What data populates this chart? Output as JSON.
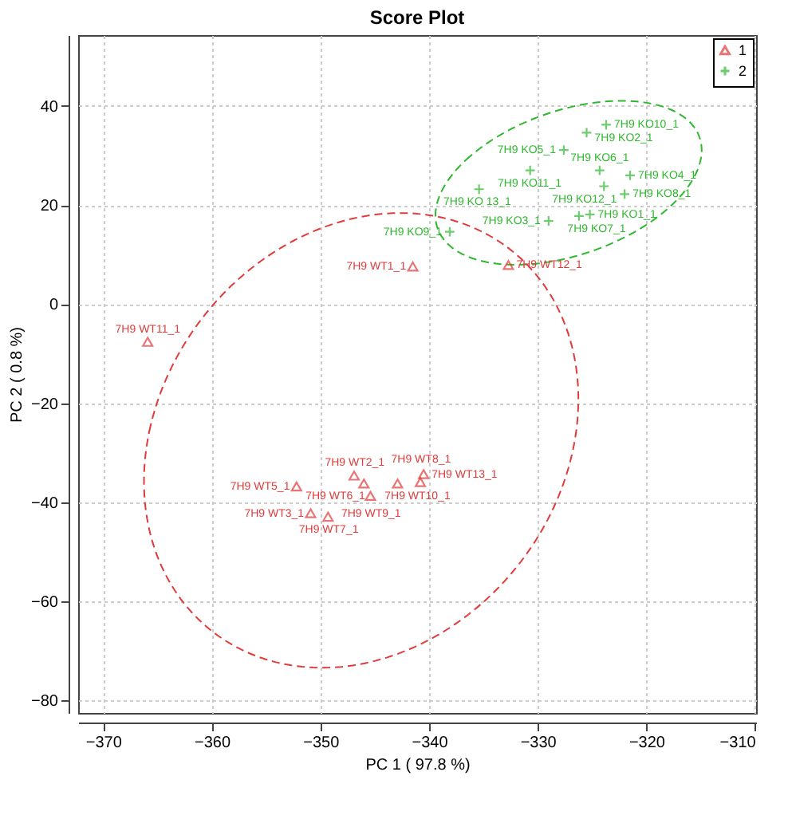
{
  "chart_data": {
    "type": "scatter",
    "title": "Score Plot",
    "xlabel": "PC 1 ( 97.8 %)",
    "ylabel": "PC 2 ( 0.8 %)",
    "xlim": [
      -372.3,
      -309.9
    ],
    "ylim": [
      -82.5,
      54.3
    ],
    "xticks": [
      -370,
      -360,
      -350,
      -340,
      -330,
      -320,
      -310
    ],
    "yticks": [
      -80,
      -60,
      -40,
      -20,
      0,
      20,
      40
    ],
    "grid": true,
    "legend": "top right",
    "series": [
      {
        "name": "1",
        "marker": "triangle",
        "color": "#e03a3a",
        "x": [
          -365.9,
          -341.5,
          -332.7,
          -346.9,
          -340.5,
          -352.2,
          -346.0,
          -342.9,
          -340.8,
          -345.4,
          -350.9,
          -349.3
        ],
        "values": [
          -7.6,
          7.6,
          7.9,
          -34.6,
          -34.3,
          -36.8,
          -36.2,
          -36.2,
          -35.9,
          -38.7,
          -42.2,
          -42.9
        ],
        "value_labels": [
          "7H9 WT11_1",
          "7H9 WT1_1",
          "7H9 WT12_1",
          "7H9 WT2_1",
          "7H9 WT13_1",
          "7H9 WT5_1",
          "7H9 WT6_1",
          "7H9 WT10_1",
          "7H9 WT8_1",
          "7H9 WT9_1",
          "7H9 WT3_1",
          "7H9 WT7_1"
        ]
      },
      {
        "name": "2",
        "marker": "cross",
        "color": "#2db82d",
        "x": [
          -323.7,
          -325.5,
          -327.6,
          -330.7,
          -324.3,
          -321.5,
          -323.9,
          -322.0,
          -335.4,
          -329.0,
          -326.2,
          -325.2,
          -338.1
        ],
        "values": [
          36.2,
          34.6,
          31.1,
          27.0,
          27.0,
          26.0,
          23.8,
          22.2,
          23.2,
          16.8,
          17.8,
          18.1,
          14.6
        ],
        "value_labels": [
          "7H9 KO10_1",
          "7H9 KO2_1",
          "7H9 KO5_1",
          "7H9 KO11_1",
          "7H9 KO6_1",
          "7H9 KO4_1",
          "7H9 KO12_1",
          "7H9 KO8_1",
          "7H9 KO 13_1",
          "7H9 KO3_1",
          "7H9 KO7_1",
          "7H9 KO1_1",
          "7H9 KO9_1"
        ]
      }
    ]
  }
}
